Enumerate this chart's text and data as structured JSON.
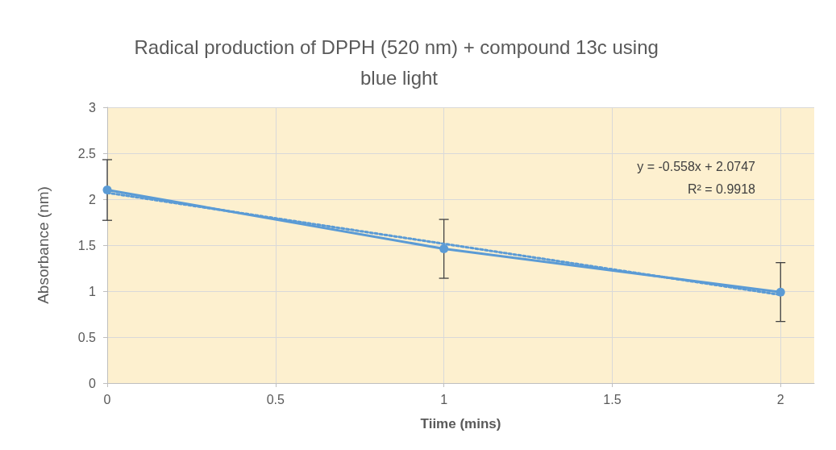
{
  "chart_data": {
    "type": "line",
    "title": "Radical production of DPPH (520 nm) + compound 13c using blue light",
    "xlabel": "Tiime (mins)",
    "ylabel": "Absorbance (nm)",
    "x": [
      0,
      1,
      2
    ],
    "series": [
      {
        "color": "#5b9bd5",
        "values": [
          2.1,
          1.46,
          0.99
        ],
        "errors": [
          0.33,
          0.32,
          0.32
        ],
        "marker": "circle",
        "line_style": "solid"
      },
      {
        "color": "#5b9bd5",
        "x": [
          0,
          2
        ],
        "values": [
          2.07,
          0.96
        ],
        "marker": "none",
        "line_style": "dotted"
      }
    ],
    "annotations": [
      "y = -0.558x + 2.0747",
      "R² = 0.9918"
    ],
    "xlim": [
      0,
      2.1
    ],
    "xticks": [
      0,
      0.5,
      1,
      1.5,
      2
    ],
    "ylim": [
      0,
      3
    ],
    "yticks": [
      0,
      0.5,
      1,
      1.5,
      2,
      2.5,
      3
    ],
    "grid": true
  }
}
